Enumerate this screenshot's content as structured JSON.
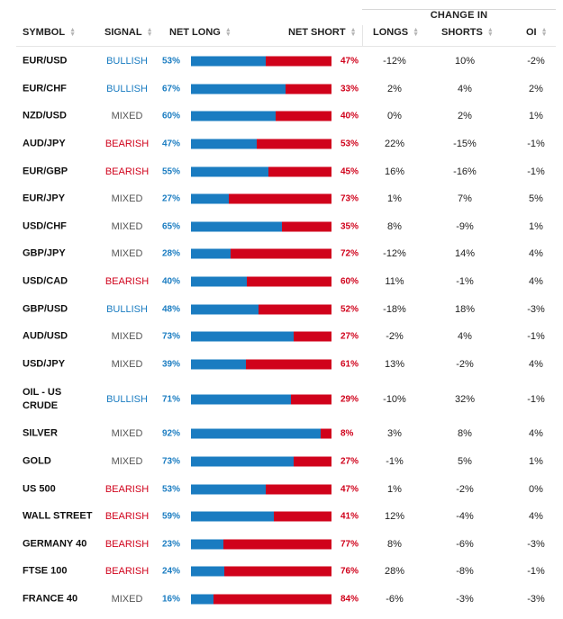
{
  "header": {
    "change_in": "CHANGE IN",
    "columns": {
      "symbol": "SYMBOL",
      "signal": "SIGNAL",
      "net_long": "NET LONG",
      "net_short": "NET SHORT",
      "longs": "LONGS",
      "shorts": "SHORTS",
      "oi": "OI"
    },
    "sort_icon_up": "▲",
    "sort_icon_down": "▼"
  },
  "colors": {
    "long": "#1a7cc1",
    "short": "#d0021b",
    "bullish": "#1a7cc1",
    "bearish": "#d0021b",
    "mixed": "#555555"
  },
  "rows": [
    {
      "symbol": "EUR/USD",
      "signal": "BULLISH",
      "net_long": "53%",
      "net_long_pct": 53,
      "net_short": "47%",
      "longs": "-12%",
      "shorts": "10%",
      "oi": "-2%"
    },
    {
      "symbol": "EUR/CHF",
      "signal": "BULLISH",
      "net_long": "67%",
      "net_long_pct": 67,
      "net_short": "33%",
      "longs": "2%",
      "shorts": "4%",
      "oi": "2%"
    },
    {
      "symbol": "NZD/USD",
      "signal": "MIXED",
      "net_long": "60%",
      "net_long_pct": 60,
      "net_short": "40%",
      "longs": "0%",
      "shorts": "2%",
      "oi": "1%"
    },
    {
      "symbol": "AUD/JPY",
      "signal": "BEARISH",
      "net_long": "47%",
      "net_long_pct": 47,
      "net_short": "53%",
      "longs": "22%",
      "shorts": "-15%",
      "oi": "-1%"
    },
    {
      "symbol": "EUR/GBP",
      "signal": "BEARISH",
      "net_long": "55%",
      "net_long_pct": 55,
      "net_short": "45%",
      "longs": "16%",
      "shorts": "-16%",
      "oi": "-1%"
    },
    {
      "symbol": "EUR/JPY",
      "signal": "MIXED",
      "net_long": "27%",
      "net_long_pct": 27,
      "net_short": "73%",
      "longs": "1%",
      "shorts": "7%",
      "oi": "5%"
    },
    {
      "symbol": "USD/CHF",
      "signal": "MIXED",
      "net_long": "65%",
      "net_long_pct": 65,
      "net_short": "35%",
      "longs": "8%",
      "shorts": "-9%",
      "oi": "1%"
    },
    {
      "symbol": "GBP/JPY",
      "signal": "MIXED",
      "net_long": "28%",
      "net_long_pct": 28,
      "net_short": "72%",
      "longs": "-12%",
      "shorts": "14%",
      "oi": "4%"
    },
    {
      "symbol": "USD/CAD",
      "signal": "BEARISH",
      "net_long": "40%",
      "net_long_pct": 40,
      "net_short": "60%",
      "longs": "11%",
      "shorts": "-1%",
      "oi": "4%"
    },
    {
      "symbol": "GBP/USD",
      "signal": "BULLISH",
      "net_long": "48%",
      "net_long_pct": 48,
      "net_short": "52%",
      "longs": "-18%",
      "shorts": "18%",
      "oi": "-3%"
    },
    {
      "symbol": "AUD/USD",
      "signal": "MIXED",
      "net_long": "73%",
      "net_long_pct": 73,
      "net_short": "27%",
      "longs": "-2%",
      "shorts": "4%",
      "oi": "-1%"
    },
    {
      "symbol": "USD/JPY",
      "signal": "MIXED",
      "net_long": "39%",
      "net_long_pct": 39,
      "net_short": "61%",
      "longs": "13%",
      "shorts": "-2%",
      "oi": "4%"
    },
    {
      "symbol": "OIL - US CRUDE",
      "signal": "BULLISH",
      "net_long": "71%",
      "net_long_pct": 71,
      "net_short": "29%",
      "longs": "-10%",
      "shorts": "32%",
      "oi": "-1%"
    },
    {
      "symbol": "SILVER",
      "signal": "MIXED",
      "net_long": "92%",
      "net_long_pct": 92,
      "net_short": "8%",
      "longs": "3%",
      "shorts": "8%",
      "oi": "4%"
    },
    {
      "symbol": "GOLD",
      "signal": "MIXED",
      "net_long": "73%",
      "net_long_pct": 73,
      "net_short": "27%",
      "longs": "-1%",
      "shorts": "5%",
      "oi": "1%"
    },
    {
      "symbol": "US 500",
      "signal": "BEARISH",
      "net_long": "53%",
      "net_long_pct": 53,
      "net_short": "47%",
      "longs": "1%",
      "shorts": "-2%",
      "oi": "0%"
    },
    {
      "symbol": "WALL STREET",
      "signal": "BEARISH",
      "net_long": "59%",
      "net_long_pct": 59,
      "net_short": "41%",
      "longs": "12%",
      "shorts": "-4%",
      "oi": "4%"
    },
    {
      "symbol": "GERMANY 40",
      "signal": "BEARISH",
      "net_long": "23%",
      "net_long_pct": 23,
      "net_short": "77%",
      "longs": "8%",
      "shorts": "-6%",
      "oi": "-3%"
    },
    {
      "symbol": "FTSE 100",
      "signal": "BEARISH",
      "net_long": "24%",
      "net_long_pct": 24,
      "net_short": "76%",
      "longs": "28%",
      "shorts": "-8%",
      "oi": "-1%"
    },
    {
      "symbol": "FRANCE 40",
      "signal": "MIXED",
      "net_long": "16%",
      "net_long_pct": 16,
      "net_short": "84%",
      "longs": "-6%",
      "shorts": "-3%",
      "oi": "-3%"
    }
  ]
}
